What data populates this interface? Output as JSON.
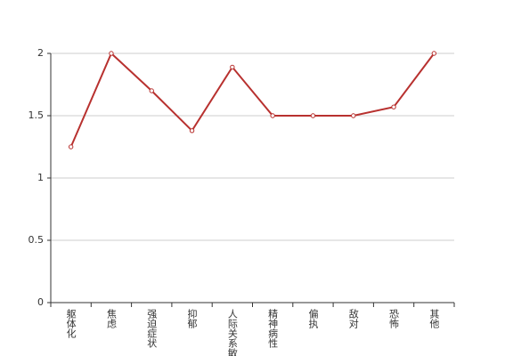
{
  "chart_data": {
    "type": "line",
    "categories": [
      "躯体化",
      "焦虑",
      "强迫症状",
      "抑郁",
      "人际关系敏感",
      "精神病性",
      "偏执",
      "敌对",
      "恐怖",
      "其他"
    ],
    "series": [
      {
        "color": "#b8312f",
        "values": [
          1.25,
          2,
          1.7,
          1.38,
          1.89,
          1.5,
          1.5,
          1.5,
          1.57,
          2
        ]
      }
    ],
    "ylim": [
      0,
      2
    ],
    "yticks": [
      0,
      0.5,
      1,
      1.5,
      2
    ],
    "grid": true
  }
}
